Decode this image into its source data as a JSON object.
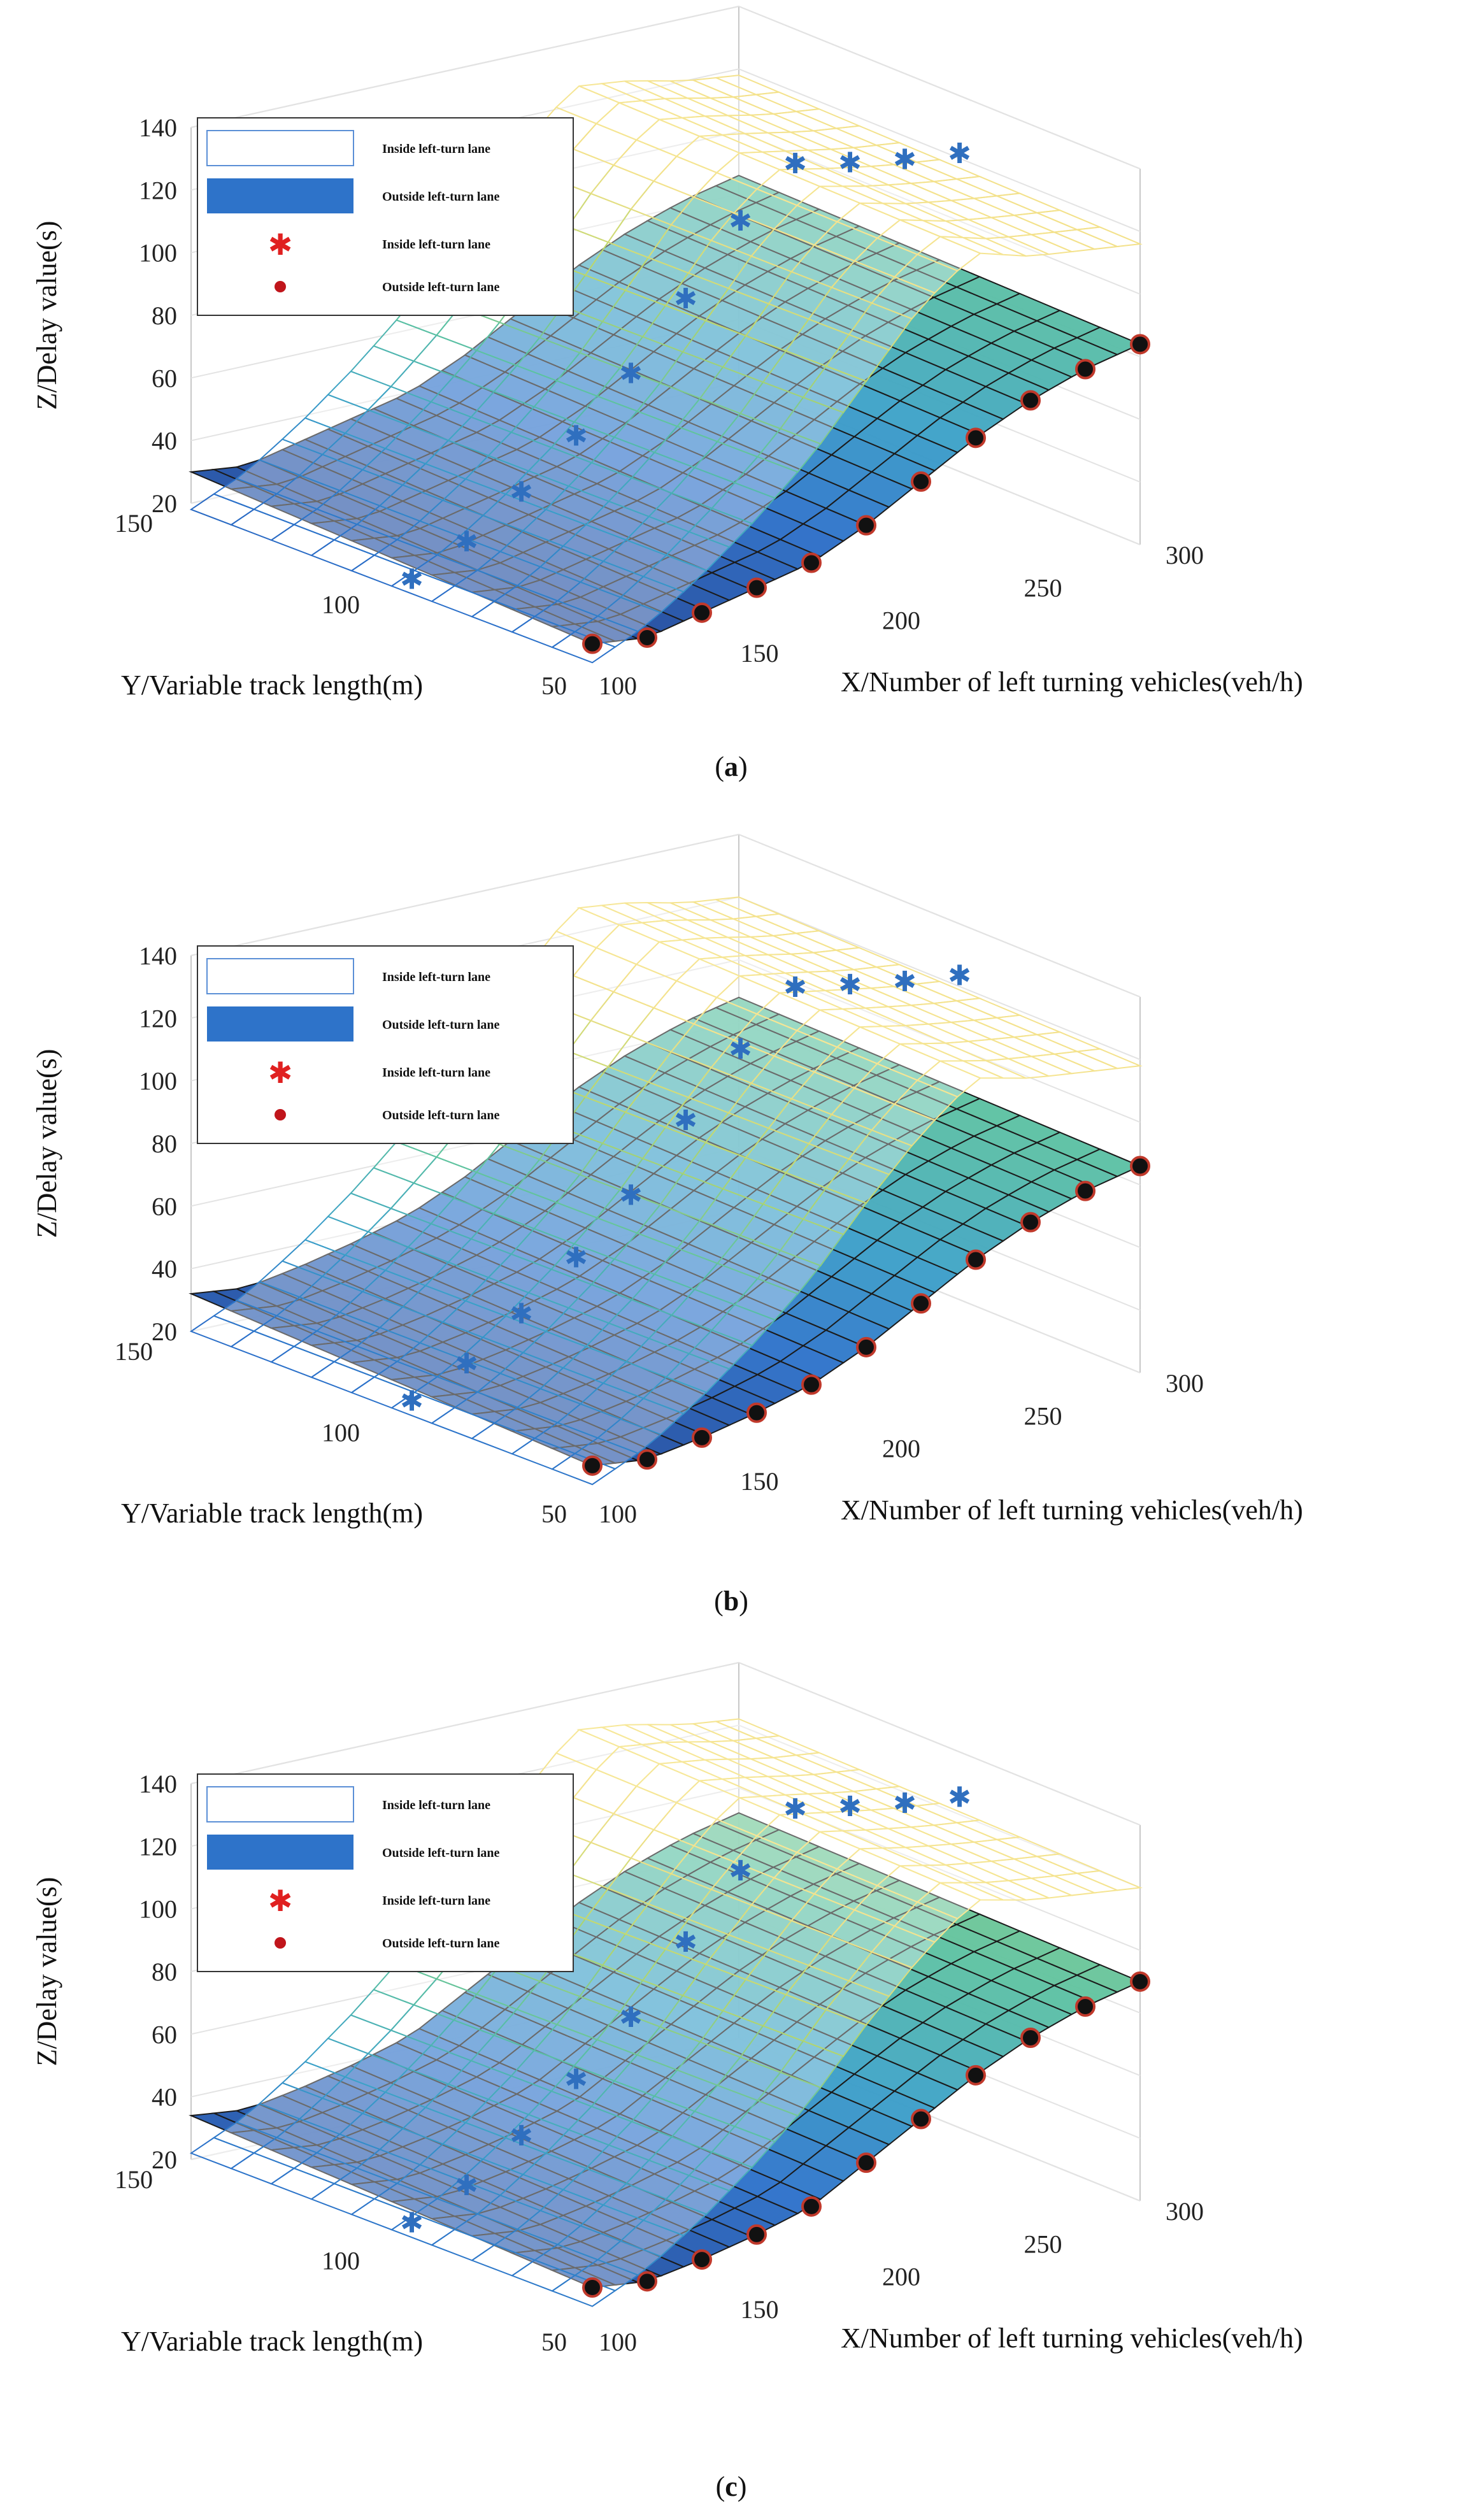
{
  "chart_data": [
    {
      "type": "surface3d",
      "caption_letter": "a",
      "zlabel": "Z/Delay value(s)",
      "ylabel": "Y/Variable track length(m)",
      "xlabel": "X/Number of left turning vehicles(veh/h)",
      "z_ticks": [
        "140",
        "120",
        "100",
        "80",
        "60",
        "40",
        "20"
      ],
      "y_ticks": [
        "150",
        "100",
        "50"
      ],
      "x_ticks": [
        "100",
        "150",
        "200",
        "250",
        "300"
      ],
      "xlim": [
        100,
        300
      ],
      "ylim": [
        50,
        150
      ],
      "zlim": [
        20,
        140
      ],
      "legend": [
        "Inside left-turn lane",
        "Outside left-turn lane",
        "Inside left-turn lane",
        "Outside left-turn lane"
      ],
      "inside_lane": {
        "z_front": [
          22,
          30,
          42,
          56,
          72,
          92,
          112,
          125,
          120,
          118,
          116
        ],
        "z_back": [
          18,
          26,
          38,
          52,
          68,
          88,
          110,
          126,
          124,
          120,
          118
        ]
      },
      "outside_lane": {
        "z_front": [
          28,
          26,
          30,
          34,
          38,
          46,
          56,
          66,
          74,
          80,
          84
        ],
        "z_back": [
          30,
          28,
          32,
          36,
          40,
          48,
          58,
          68,
          76,
          82,
          86
        ]
      }
    },
    {
      "type": "surface3d",
      "caption_letter": "b",
      "zlabel": "Z/Delay value(s)",
      "ylabel": "Y/Variable track length(m)",
      "xlabel": "X/Number of left turning vehicles(veh/h)",
      "z_ticks": [
        "140",
        "120",
        "100",
        "80",
        "60",
        "40",
        "20"
      ],
      "y_ticks": [
        "150",
        "100",
        "50"
      ],
      "x_ticks": [
        "100",
        "150",
        "200",
        "250",
        "300"
      ],
      "xlim": [
        100,
        300
      ],
      "ylim": [
        50,
        150
      ],
      "zlim": [
        20,
        140
      ],
      "legend": [
        "Inside left-turn lane",
        "Outside left-turn lane",
        "Inside left-turn lane",
        "Outside left-turn lane"
      ],
      "inside_lane": {
        "z_front": [
          24,
          32,
          44,
          58,
          74,
          94,
          112,
          126,
          122,
          120,
          118
        ],
        "z_back": [
          20,
          28,
          40,
          54,
          70,
          90,
          110,
          128,
          126,
          122,
          120
        ]
      },
      "outside_lane": {
        "z_front": [
          30,
          28,
          31,
          35,
          40,
          48,
          58,
          68,
          76,
          82,
          86
        ],
        "z_back": [
          32,
          30,
          33,
          37,
          42,
          50,
          60,
          70,
          78,
          84,
          88
        ]
      }
    },
    {
      "type": "surface3d",
      "caption_letter": "c",
      "zlabel": "Z/Delay value(s)",
      "ylabel": "Y/Variable track length(m)",
      "xlabel": "X/Number of left turning vehicles(veh/h)",
      "z_ticks": [
        "140",
        "120",
        "100",
        "80",
        "60",
        "40",
        "20"
      ],
      "y_ticks": [
        "150",
        "100",
        "50"
      ],
      "x_ticks": [
        "100",
        "150",
        "200",
        "250",
        "300"
      ],
      "xlim": [
        100,
        300
      ],
      "ylim": [
        50,
        150
      ],
      "zlim": [
        20,
        140
      ],
      "legend": [
        "Inside left-turn lane",
        "Outside left-turn lane",
        "Inside left-turn lane",
        "Outside left-turn lane"
      ],
      "inside_lane": {
        "z_front": [
          26,
          34,
          46,
          60,
          76,
          96,
          114,
          128,
          124,
          122,
          120
        ],
        "z_back": [
          22,
          30,
          42,
          56,
          72,
          92,
          112,
          130,
          128,
          124,
          122
        ]
      },
      "outside_lane": {
        "z_front": [
          32,
          30,
          33,
          37,
          42,
          52,
          62,
          72,
          80,
          86,
          90
        ],
        "z_back": [
          34,
          32,
          35,
          39,
          44,
          54,
          64,
          74,
          82,
          88,
          92
        ]
      }
    }
  ]
}
